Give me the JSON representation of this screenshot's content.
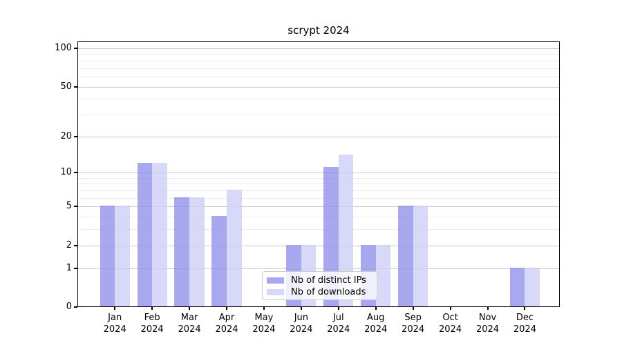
{
  "figure": {
    "background": "#ffffff"
  },
  "chart_data": {
    "type": "bar",
    "title": "scrypt 2024",
    "categories": [
      {
        "month": "Jan",
        "year": "2024"
      },
      {
        "month": "Feb",
        "year": "2024"
      },
      {
        "month": "Mar",
        "year": "2024"
      },
      {
        "month": "Apr",
        "year": "2024"
      },
      {
        "month": "May",
        "year": "2024"
      },
      {
        "month": "Jun",
        "year": "2024"
      },
      {
        "month": "Jul",
        "year": "2024"
      },
      {
        "month": "Aug",
        "year": "2024"
      },
      {
        "month": "Sep",
        "year": "2024"
      },
      {
        "month": "Oct",
        "year": "2024"
      },
      {
        "month": "Nov",
        "year": "2024"
      },
      {
        "month": "Dec",
        "year": "2024"
      }
    ],
    "series": [
      {
        "name": "Nb of distinct IPs",
        "color": "#a8a8f0",
        "color_rgba": "rgba(146,146,236,0.8)",
        "values": [
          5,
          12,
          6,
          4,
          0,
          2,
          11,
          2,
          5,
          0,
          0,
          1
        ]
      },
      {
        "name": "Nb of downloads",
        "color": "#d8d8f8",
        "color_rgba": "rgba(206,206,246,0.8)",
        "values": [
          5,
          12,
          6,
          7,
          0,
          2,
          14,
          2,
          5,
          0,
          0,
          1
        ]
      }
    ],
    "y_axis": {
      "scale": "log10(1+value)",
      "tick_values": [
        0,
        1,
        2,
        5,
        10,
        20,
        50,
        100
      ],
      "major_gridline_values": [
        1,
        2,
        5,
        10,
        20,
        50,
        100
      ],
      "minor_gridline_values": [
        3,
        4,
        6,
        7,
        8,
        9,
        30,
        40,
        60,
        70,
        80,
        90
      ],
      "ylim": [
        0,
        114
      ]
    },
    "legend": {
      "position": "lower-center",
      "entries": [
        "Nb of distinct IPs",
        "Nb of downloads"
      ]
    },
    "grid": true,
    "xlabel": "",
    "ylabel": ""
  }
}
